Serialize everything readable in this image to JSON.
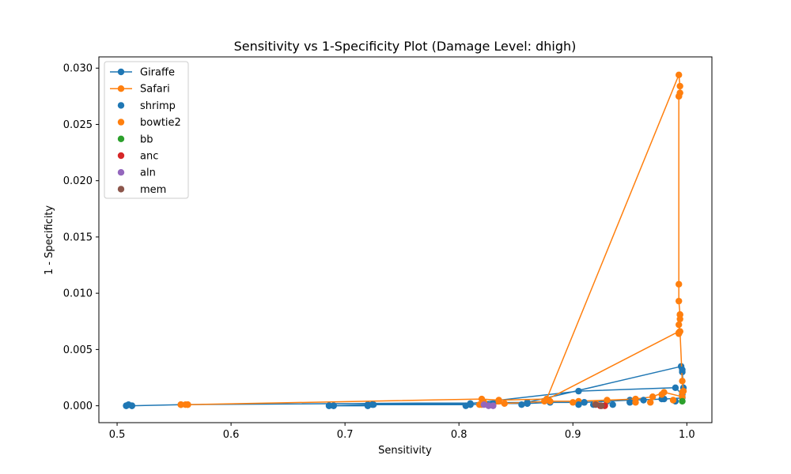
{
  "chart_data": {
    "type": "line",
    "title": "Sensitivity vs 1-Specificity Plot (Damage Level: dhigh)",
    "xlabel": "Sensitivity",
    "ylabel": "1 - Specificity",
    "xlim": [
      0.484,
      1.022
    ],
    "ylim": [
      -0.0015,
      0.031
    ],
    "xticks": [
      0.5,
      0.6,
      0.7,
      0.8,
      0.9,
      1.0
    ],
    "xtick_labels": [
      "0.5",
      "0.6",
      "0.7",
      "0.8",
      "0.9",
      "1.0"
    ],
    "yticks": [
      0.0,
      0.005,
      0.01,
      0.015,
      0.02,
      0.025,
      0.03
    ],
    "ytick_labels": [
      "0.000",
      "0.005",
      "0.010",
      "0.015",
      "0.020",
      "0.025",
      "0.030"
    ],
    "grid": false,
    "legend_position": "top-left",
    "series": [
      {
        "name": "Giraffe",
        "kind": "line",
        "color": "#1f77b4",
        "x": [
          0.508,
          0.513,
          0.556,
          0.86,
          0.995,
          0.996,
          0.997,
          0.996,
          0.98,
          0.95,
          0.93,
          0.91,
          0.88,
          0.86,
          0.83,
          0.81,
          0.725,
          0.72,
          0.69,
          0.686,
          0.72,
          0.81,
          0.905,
          0.99,
          0.996
        ],
        "y": [
          0.0,
          0.0,
          0.0001,
          0.0003,
          0.0035,
          0.003,
          0.0016,
          0.0007,
          0.0006,
          0.0005,
          0.0004,
          0.0003,
          0.0003,
          0.0002,
          0.0002,
          0.0001,
          0.0001,
          0.0,
          0.0,
          0.0,
          0.0001,
          0.0002,
          0.0013,
          0.0016,
          0.001
        ]
      },
      {
        "name": "Safari",
        "kind": "line",
        "color": "#ff7f0e",
        "x": [
          0.556,
          0.562,
          0.82,
          0.835,
          0.877,
          0.993,
          0.994,
          0.994,
          0.993,
          0.993,
          0.993,
          0.994,
          0.994,
          0.993,
          0.994,
          0.993,
          0.993,
          0.994,
          0.996,
          0.997,
          0.996,
          0.98,
          0.97,
          0.955,
          0.93,
          0.905,
          0.88,
          0.84,
          0.82
        ],
        "y": [
          0.0001,
          0.0001,
          0.0006,
          0.0005,
          0.0006,
          0.0294,
          0.0284,
          0.0278,
          0.0275,
          0.0108,
          0.0093,
          0.0081,
          0.0077,
          0.0072,
          0.0066,
          0.0065,
          0.0064,
          0.0066,
          0.0022,
          0.0013,
          0.0008,
          0.0012,
          0.0008,
          0.0006,
          0.0005,
          0.0004,
          0.0004,
          0.0002,
          0.0001
        ]
      },
      {
        "name": "Safari",
        "kind": "line-extra",
        "color": "#ff7f0e",
        "x": [
          0.878,
          0.993
        ],
        "y": [
          0.0006,
          0.0066
        ]
      },
      {
        "name": "shrimp",
        "kind": "scatter",
        "color": "#1f77b4",
        "x": [
          0.508,
          0.51,
          0.513,
          0.686,
          0.69,
          0.72,
          0.724,
          0.806,
          0.81,
          0.855,
          0.86,
          0.905,
          0.91,
          0.918,
          0.935,
          0.95,
          0.962,
          0.978,
          0.99,
          0.996
        ],
        "y": [
          0.0,
          0.0001,
          0.0,
          0.0,
          0.0,
          0.0,
          0.0001,
          0.0,
          0.0001,
          0.0001,
          0.0002,
          0.0001,
          0.0003,
          0.0001,
          0.0001,
          0.0003,
          0.0005,
          0.0006,
          0.0004,
          0.0032
        ]
      },
      {
        "name": "bowtie2",
        "kind": "scatter",
        "color": "#ff7f0e",
        "x": [
          0.556,
          0.56,
          0.562,
          0.818,
          0.822,
          0.835,
          0.875,
          0.9,
          0.92,
          0.955,
          0.968,
          0.978,
          0.988,
          0.993,
          0.994,
          0.996
        ],
        "y": [
          0.0001,
          0.0001,
          0.0001,
          0.0001,
          0.0003,
          0.0004,
          0.0004,
          0.0003,
          0.0002,
          0.0003,
          0.0003,
          0.001,
          0.0005,
          0.0275,
          0.0081,
          0.0012
        ]
      },
      {
        "name": "bb",
        "kind": "scatter",
        "color": "#2ca02c",
        "x": [
          0.996
        ],
        "y": [
          0.0004
        ]
      },
      {
        "name": "anc",
        "kind": "scatter",
        "color": "#d62728",
        "x": [
          0.924,
          0.928
        ],
        "y": [
          0.0,
          0.0
        ]
      },
      {
        "name": "aln",
        "kind": "scatter",
        "color": "#9467bd",
        "x": [
          0.822,
          0.826,
          0.83
        ],
        "y": [
          0.0001,
          0.0,
          0.0
        ]
      },
      {
        "name": "mem",
        "kind": "scatter",
        "color": "#8c564b",
        "x": [
          0.92,
          0.925
        ],
        "y": [
          0.0001,
          0.0
        ]
      }
    ],
    "legend": [
      "Giraffe",
      "Safari",
      "shrimp",
      "bowtie2",
      "bb",
      "anc",
      "aln",
      "mem"
    ]
  }
}
